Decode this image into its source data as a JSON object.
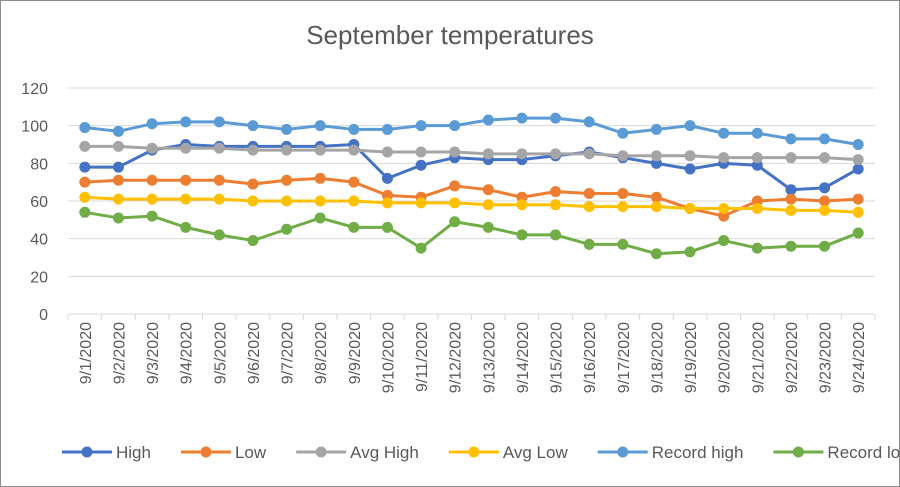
{
  "chart_data": {
    "type": "line",
    "title": "September temperatures",
    "xlabel": "",
    "ylabel": "",
    "ylim": [
      0,
      120
    ],
    "yticks": [
      "0",
      "20",
      "40",
      "60",
      "80",
      "100",
      "120"
    ],
    "grid": true,
    "legend_position": "bottom",
    "categories": [
      "9/1/2020",
      "9/2/2020",
      "9/3/2020",
      "9/4/2020",
      "9/5/2020",
      "9/6/2020",
      "9/7/2020",
      "9/8/2020",
      "9/9/2020",
      "9/10/2020",
      "9/11/2020",
      "9/12/2020",
      "9/13/2020",
      "9/14/2020",
      "9/15/2020",
      "9/16/2020",
      "9/17/2020",
      "9/18/2020",
      "9/19/2020",
      "9/20/2020",
      "9/21/2020",
      "9/22/2020",
      "9/23/2020",
      "9/24/2020"
    ],
    "series": [
      {
        "name": "High",
        "color": "#4472c4",
        "values": [
          78,
          78,
          87,
          90,
          89,
          89,
          89,
          89,
          90,
          72,
          79,
          83,
          82,
          82,
          84,
          86,
          83,
          80,
          77,
          80,
          79,
          66,
          67,
          77
        ]
      },
      {
        "name": "Low",
        "color": "#ed7d31",
        "values": [
          70,
          71,
          71,
          71,
          71,
          69,
          71,
          72,
          70,
          63,
          62,
          68,
          66,
          62,
          65,
          64,
          64,
          62,
          56,
          52,
          60,
          61,
          60,
          61
        ]
      },
      {
        "name": "Avg High",
        "color": "#a5a5a5",
        "values": [
          89,
          89,
          88,
          88,
          88,
          87,
          87,
          87,
          87,
          86,
          86,
          86,
          85,
          85,
          85,
          85,
          84,
          84,
          84,
          83,
          83,
          83,
          83,
          82
        ]
      },
      {
        "name": "Avg Low",
        "color": "#ffc000",
        "values": [
          62,
          61,
          61,
          61,
          61,
          60,
          60,
          60,
          60,
          59,
          59,
          59,
          58,
          58,
          58,
          57,
          57,
          57,
          56,
          56,
          56,
          55,
          55,
          54
        ]
      },
      {
        "name": "Record high",
        "color": "#5b9bd5",
        "values": [
          99,
          97,
          101,
          102,
          102,
          100,
          98,
          100,
          98,
          98,
          100,
          100,
          103,
          104,
          104,
          102,
          96,
          98,
          100,
          96,
          96,
          93,
          93,
          90
        ]
      },
      {
        "name": "Record low",
        "color": "#70ad47",
        "values": [
          54,
          51,
          52,
          46,
          42,
          39,
          45,
          51,
          46,
          46,
          35,
          49,
          46,
          42,
          42,
          37,
          37,
          32,
          33,
          39,
          35,
          36,
          36,
          43
        ]
      }
    ]
  }
}
